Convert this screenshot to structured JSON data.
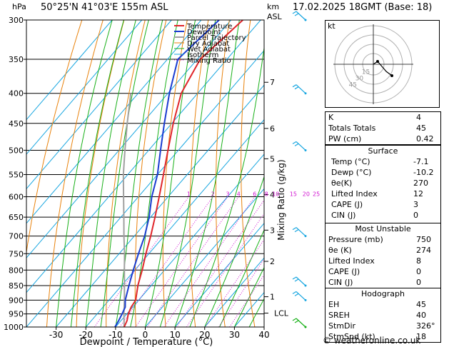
{
  "header": {
    "hpa_label": "hPa",
    "location": "50°25'N  41°03'E  155m  ASL",
    "km_label": "km",
    "asl_label": "ASL",
    "datetime": "17.02.2025  18GMT  (Base: 18)"
  },
  "legend": [
    {
      "label": "Temperature",
      "color": "#e0252a"
    },
    {
      "label": "Dewpoint",
      "color": "#1a3cd0"
    },
    {
      "label": "Parcel Trajectory",
      "color": "#a0a0a0"
    },
    {
      "label": "Dry Adiabat",
      "color": "#e8820c"
    },
    {
      "label": "Wet Adiabat",
      "color": "#18b018"
    },
    {
      "label": "Isotherm",
      "color": "#18a6e0"
    },
    {
      "label": "Mixing Ratio",
      "color": "#d010d0"
    }
  ],
  "chart_data": {
    "type": "line",
    "chart_kind": "skew-T log-p sounding",
    "xlabel": "Dewpoint / Temperature (°C)",
    "ylabel_right": "Mixing Ratio (g/kg)",
    "x_ticks": [
      -30,
      -20,
      -10,
      0,
      10,
      20,
      30,
      40
    ],
    "xlim": [
      -40,
      40
    ],
    "y_ticks": [
      300,
      350,
      400,
      450,
      500,
      550,
      600,
      650,
      700,
      750,
      800,
      850,
      900,
      950,
      1000
    ],
    "ylim": [
      1000,
      300
    ],
    "y_scale": "log",
    "km_ticks": [
      {
        "p": 383,
        "label": "7"
      },
      {
        "p": 459,
        "label": "6"
      },
      {
        "p": 517,
        "label": "5"
      },
      {
        "p": 595,
        "label": "4"
      },
      {
        "p": 684,
        "label": "3"
      },
      {
        "p": 773,
        "label": "2"
      },
      {
        "p": 888,
        "label": "1"
      },
      {
        "p": 947,
        "label": "LCL"
      }
    ],
    "mixing_ratio_labels": [
      "1",
      "2",
      "3",
      "4",
      "6",
      "8",
      "10",
      "15",
      "20",
      "25"
    ],
    "mixing_ratio_label_pressure": 593,
    "series": [
      {
        "name": "Temperature",
        "color": "#e0252a",
        "points": [
          [
            1000,
            -7.1
          ],
          [
            975,
            -8.0
          ],
          [
            950,
            -9.5
          ],
          [
            925,
            -10.5
          ],
          [
            900,
            -11.0
          ],
          [
            850,
            -14.5
          ],
          [
            800,
            -17.5
          ],
          [
            750,
            -21.0
          ],
          [
            700,
            -24.5
          ],
          [
            650,
            -28.5
          ],
          [
            600,
            -33.0
          ],
          [
            550,
            -38.0
          ],
          [
            500,
            -43.5
          ],
          [
            450,
            -49.5
          ],
          [
            400,
            -55.5
          ],
          [
            350,
            -59.0
          ],
          [
            300,
            -56.0
          ]
        ]
      },
      {
        "name": "Dewpoint",
        "color": "#1a3cd0",
        "points": [
          [
            1000,
            -10.2
          ],
          [
            975,
            -10.8
          ],
          [
            950,
            -11.6
          ],
          [
            925,
            -12.5
          ],
          [
            900,
            -14.5
          ],
          [
            850,
            -17.5
          ],
          [
            800,
            -20.5
          ],
          [
            750,
            -23.5
          ],
          [
            700,
            -26.5
          ],
          [
            650,
            -30.5
          ],
          [
            600,
            -35.5
          ],
          [
            550,
            -40.0
          ],
          [
            500,
            -46.0
          ],
          [
            450,
            -52.5
          ],
          [
            400,
            -59.5
          ],
          [
            350,
            -66.5
          ],
          [
            300,
            -64.0
          ]
        ]
      },
      {
        "name": "Parcel Trajectory",
        "color": "#a0a0a0",
        "points": [
          [
            1000,
            -7.1
          ],
          [
            947,
            -11.2
          ],
          [
            900,
            -14.8
          ],
          [
            850,
            -19.0
          ],
          [
            800,
            -23.5
          ],
          [
            750,
            -28.2
          ],
          [
            700,
            -33.5
          ],
          [
            650,
            -39.0
          ],
          [
            600,
            -45.0
          ],
          [
            550,
            -51.5
          ],
          [
            500,
            -58.0
          ],
          [
            450,
            -65.0
          ],
          [
            400,
            -72.5
          ]
        ]
      }
    ],
    "wind_barbs_pressure": [
      1000,
      900,
      850,
      700,
      500,
      400,
      300
    ]
  },
  "hodograph": {
    "unit_label": "kt",
    "ring_labels": [
      "45",
      "30",
      "15"
    ]
  },
  "stability_top": [
    {
      "label": "K",
      "value": "4"
    },
    {
      "label": "Totals Totals",
      "value": "45"
    },
    {
      "label": "PW (cm)",
      "value": "0.42"
    }
  ],
  "surface": {
    "title": "Surface",
    "rows": [
      {
        "label": "Temp (°C)",
        "value": "-7.1"
      },
      {
        "label": "Dewp (°C)",
        "value": "-10.2"
      },
      {
        "label": "θe(K)",
        "value": "270"
      },
      {
        "label": "Lifted Index",
        "value": "12"
      },
      {
        "label": "CAPE (J)",
        "value": "3"
      },
      {
        "label": "CIN (J)",
        "value": "0"
      }
    ]
  },
  "most_unstable": {
    "title": "Most Unstable",
    "rows": [
      {
        "label": "Pressure (mb)",
        "value": "750"
      },
      {
        "label": "θe (K)",
        "value": "274"
      },
      {
        "label": "Lifted Index",
        "value": "8"
      },
      {
        "label": "CAPE (J)",
        "value": "0"
      },
      {
        "label": "CIN (J)",
        "value": "0"
      }
    ]
  },
  "hodograph_table": {
    "title": "Hodograph",
    "rows": [
      {
        "label": "EH",
        "value": "45"
      },
      {
        "label": "SREH",
        "value": "40"
      },
      {
        "label": "StmDir",
        "value": "326°"
      },
      {
        "label": "StmSpd (kt)",
        "value": "18"
      }
    ]
  },
  "footer": "© weatheronline.co.uk"
}
